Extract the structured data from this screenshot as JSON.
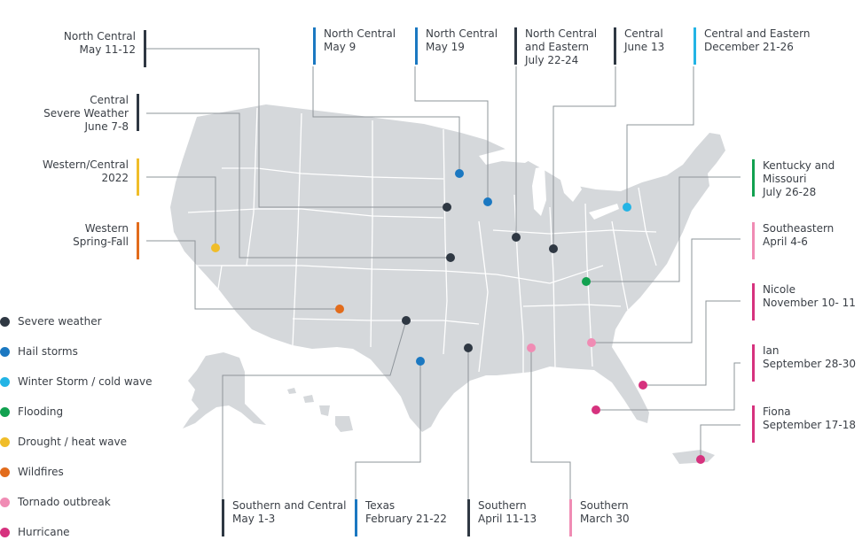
{
  "colors": {
    "severe_weather": "#2f3843",
    "hail_storms": "#1b78c1",
    "winter_storm": "#23b4e5",
    "flooding": "#12a150",
    "drought": "#f0bd29",
    "wildfires": "#e26c1c",
    "tornado": "#f08cb4",
    "hurricane": "#d6327e",
    "land": "#d5d8db",
    "state_border": "#ffffff",
    "leader_line": "#8e949a"
  },
  "legend": [
    {
      "label": "Severe weather",
      "color_key": "severe_weather"
    },
    {
      "label": "Hail storms",
      "color_key": "hail_storms"
    },
    {
      "label": "Winter Storm / cold wave",
      "color_key": "winter_storm"
    },
    {
      "label": "Flooding",
      "color_key": "flooding"
    },
    {
      "label": "Drought / heat wave",
      "color_key": "drought"
    },
    {
      "label": "Wildfires",
      "color_key": "wildfires"
    },
    {
      "label": "Tornado outbreak",
      "color_key": "tornado"
    },
    {
      "label": "Hurricane",
      "color_key": "hurricane"
    }
  ],
  "callouts": [
    {
      "id": "north-central-may-11",
      "lines": [
        "North Central",
        "May 11-12"
      ],
      "type": "severe_weather"
    },
    {
      "id": "central-severe-june-7",
      "lines": [
        "Central",
        "Severe Weather",
        "June 7-8"
      ],
      "type": "severe_weather"
    },
    {
      "id": "western-central-2022",
      "lines": [
        "Western/Central",
        "2022"
      ],
      "type": "drought"
    },
    {
      "id": "western-spring-fall",
      "lines": [
        "Western",
        "Spring-Fall"
      ],
      "type": "wildfires"
    },
    {
      "id": "north-central-may-9",
      "lines": [
        "North Central",
        "May 9"
      ],
      "type": "hail_storms"
    },
    {
      "id": "north-central-may-19",
      "lines": [
        "North Central",
        "May 19"
      ],
      "type": "hail_storms"
    },
    {
      "id": "north-central-eastern-july",
      "lines": [
        "North Central",
        "and Eastern",
        "July 22-24"
      ],
      "type": "severe_weather"
    },
    {
      "id": "central-june-13",
      "lines": [
        "Central",
        "June 13"
      ],
      "type": "severe_weather"
    },
    {
      "id": "central-eastern-december",
      "lines": [
        "Central and Eastern",
        "December 21-26"
      ],
      "type": "winter_storm"
    },
    {
      "id": "kentucky-missouri",
      "lines": [
        "Kentucky and",
        "Missouri",
        "July 26-28"
      ],
      "type": "flooding"
    },
    {
      "id": "southeastern-april",
      "lines": [
        "Southeastern",
        "April 4-6"
      ],
      "type": "tornado"
    },
    {
      "id": "nicole",
      "lines": [
        "Nicole",
        "November 10- 11"
      ],
      "type": "hurricane"
    },
    {
      "id": "ian",
      "lines": [
        "Ian",
        "September 28-30"
      ],
      "type": "hurricane"
    },
    {
      "id": "fiona",
      "lines": [
        "Fiona",
        "September 17-18"
      ],
      "type": "hurricane"
    },
    {
      "id": "southern-central-may",
      "lines": [
        "Southern and Central",
        "May 1-3"
      ],
      "type": "severe_weather"
    },
    {
      "id": "texas-february",
      "lines": [
        "Texas",
        "February 21-22"
      ],
      "type": "hail_storms"
    },
    {
      "id": "southern-april",
      "lines": [
        "Southern",
        "April 11-13"
      ],
      "type": "severe_weather"
    },
    {
      "id": "southern-march",
      "lines": [
        "Southern",
        "March 30"
      ],
      "type": "tornado"
    }
  ]
}
